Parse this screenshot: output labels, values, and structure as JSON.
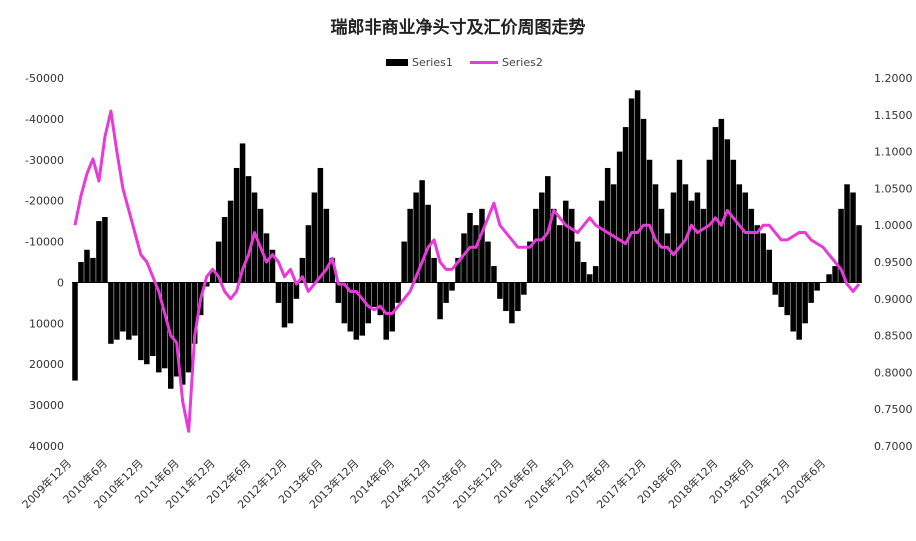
{
  "chart_data": {
    "type": "bar+line",
    "title": "瑞郎非商业净头寸及汇价周图走势",
    "legend": {
      "placement": "top-center",
      "entries": [
        {
          "name": "Series1",
          "style": "bar",
          "color": "#000000"
        },
        {
          "name": "Series2",
          "style": "line",
          "color": "#e83ad8"
        }
      ]
    },
    "left_axis": {
      "reversed": true,
      "ylim": [
        -50000,
        40000
      ],
      "ticks": [
        -50000,
        -40000,
        -30000,
        -20000,
        -10000,
        0,
        10000,
        20000,
        30000,
        40000
      ],
      "tick_labels": [
        "-50000",
        "-40000",
        "-30000",
        "-20000",
        "-10000",
        "0",
        "10000",
        "20000",
        "30000",
        "40000"
      ]
    },
    "right_axis": {
      "ylim": [
        0.7,
        1.2
      ],
      "ticks": [
        1.2,
        1.15,
        1.1,
        1.05,
        1.0,
        0.95,
        0.9,
        0.85,
        0.8,
        0.75,
        0.7
      ],
      "tick_labels": [
        "1.2000",
        "1.1500",
        "1.1000",
        "1.0500",
        "1.0000",
        "0.9500",
        "0.9000",
        "0.8500",
        "0.8000",
        "0.7500",
        "0.7000"
      ]
    },
    "x_axis": {
      "tick_labels": [
        "2009年12月",
        "2010年6月",
        "2010年12月",
        "2011年6月",
        "2011年12月",
        "2012年6月",
        "2012年12月",
        "2013年6月",
        "2013年12月",
        "2014年6月",
        "2014年12月",
        "2015年6月",
        "2015年12月",
        "2016年6月",
        "2016年12月",
        "2017年6月",
        "2017年12月",
        "2018年6月",
        "2018年12月",
        "2019年6月",
        "2019年12月",
        "2020年6月"
      ],
      "tick_months": [
        0,
        6,
        12,
        18,
        24,
        30,
        36,
        42,
        48,
        54,
        60,
        66,
        72,
        78,
        84,
        90,
        96,
        102,
        108,
        114,
        120,
        126
      ],
      "span_months": 132
    },
    "grid": false,
    "series": [
      {
        "name": "Series1",
        "type": "bar",
        "axis": "left",
        "x_months": [
          0,
          1,
          2,
          3,
          4,
          5,
          6,
          7,
          8,
          9,
          10,
          11,
          12,
          13,
          14,
          15,
          16,
          17,
          18,
          19,
          20,
          21,
          22,
          23,
          24,
          25,
          26,
          27,
          28,
          29,
          30,
          31,
          32,
          33,
          34,
          35,
          36,
          37,
          38,
          39,
          40,
          41,
          42,
          43,
          44,
          45,
          46,
          47,
          48,
          49,
          50,
          51,
          52,
          53,
          54,
          55,
          56,
          57,
          58,
          59,
          60,
          61,
          62,
          63,
          64,
          65,
          66,
          67,
          68,
          69,
          70,
          71,
          72,
          73,
          74,
          75,
          76,
          77,
          78,
          79,
          80,
          81,
          82,
          83,
          84,
          85,
          86,
          87,
          88,
          89,
          90,
          91,
          92,
          93,
          94,
          95,
          96,
          97,
          98,
          99,
          100,
          101,
          102,
          103,
          104,
          105,
          106,
          107,
          108,
          109,
          110,
          111,
          112,
          113,
          114,
          115,
          116,
          117,
          118,
          119,
          120,
          121,
          122,
          123,
          124,
          125,
          126,
          127,
          128,
          129,
          130,
          131
        ],
        "values": [
          24000,
          -5000,
          -8000,
          -6000,
          -15000,
          -16000,
          15000,
          14000,
          12000,
          14000,
          13000,
          19000,
          20000,
          18000,
          22000,
          21000,
          26000,
          23000,
          25000,
          22000,
          15000,
          8000,
          1000,
          -3000,
          -10000,
          -16000,
          -20000,
          -28000,
          -34000,
          -26000,
          -22000,
          -18000,
          -12000,
          -8000,
          5000,
          11000,
          10000,
          4000,
          -6000,
          -14000,
          -22000,
          -28000,
          -18000,
          -6000,
          5000,
          10000,
          12000,
          14000,
          13000,
          10000,
          6000,
          8000,
          14000,
          12000,
          5000,
          -10000,
          -18000,
          -22000,
          -25000,
          -19000,
          -6000,
          9000,
          5000,
          2000,
          -6000,
          -12000,
          -17000,
          -14000,
          -18000,
          -10000,
          -4000,
          4000,
          7000,
          10000,
          7000,
          3000,
          -10000,
          -18000,
          -22000,
          -26000,
          -18000,
          -14000,
          -20000,
          -18000,
          -10000,
          -5000,
          -2000,
          -4000,
          -20000,
          -28000,
          -24000,
          -32000,
          -38000,
          -45000,
          -47000,
          -40000,
          -30000,
          -24000,
          -18000,
          -12000,
          -22000,
          -30000,
          -24000,
          -20000,
          -22000,
          -18000,
          -30000,
          -38000,
          -40000,
          -35000,
          -30000,
          -24000,
          -22000,
          -18000,
          -14000,
          -12000,
          -8000,
          3000,
          6000,
          8000,
          12000,
          14000,
          10000,
          5000,
          2000,
          0,
          -2000,
          -4000,
          -18000,
          -24000,
          -22000,
          -14000
        ]
      },
      {
        "name": "Series2",
        "type": "line",
        "axis": "right",
        "x_months": [
          0,
          1,
          2,
          3,
          4,
          5,
          6,
          7,
          8,
          9,
          10,
          11,
          12,
          13,
          14,
          15,
          16,
          17,
          18,
          19,
          20,
          21,
          22,
          23,
          24,
          25,
          26,
          27,
          28,
          29,
          30,
          31,
          32,
          33,
          34,
          35,
          36,
          37,
          38,
          39,
          40,
          41,
          42,
          43,
          44,
          45,
          46,
          47,
          48,
          49,
          50,
          51,
          52,
          53,
          54,
          55,
          56,
          57,
          58,
          59,
          60,
          61,
          62,
          63,
          64,
          65,
          66,
          67,
          68,
          69,
          70,
          71,
          72,
          73,
          74,
          75,
          76,
          77,
          78,
          79,
          80,
          81,
          82,
          83,
          84,
          85,
          86,
          87,
          88,
          89,
          90,
          91,
          92,
          93,
          94,
          95,
          96,
          97,
          98,
          99,
          100,
          101,
          102,
          103,
          104,
          105,
          106,
          107,
          108,
          109,
          110,
          111,
          112,
          113,
          114,
          115,
          116,
          117,
          118,
          119,
          120,
          121,
          122,
          123,
          124,
          125,
          126,
          127,
          128,
          129,
          130,
          131
        ],
        "values": [
          1.0,
          1.04,
          1.07,
          1.09,
          1.06,
          1.12,
          1.155,
          1.1,
          1.05,
          1.02,
          0.99,
          0.96,
          0.95,
          0.93,
          0.91,
          0.88,
          0.85,
          0.84,
          0.76,
          0.72,
          0.85,
          0.9,
          0.93,
          0.94,
          0.93,
          0.91,
          0.9,
          0.91,
          0.94,
          0.96,
          0.99,
          0.97,
          0.95,
          0.96,
          0.95,
          0.93,
          0.94,
          0.92,
          0.93,
          0.91,
          0.92,
          0.93,
          0.94,
          0.955,
          0.92,
          0.92,
          0.91,
          0.91,
          0.9,
          0.89,
          0.885,
          0.89,
          0.88,
          0.88,
          0.89,
          0.9,
          0.91,
          0.93,
          0.95,
          0.97,
          0.98,
          0.95,
          0.94,
          0.94,
          0.95,
          0.96,
          0.97,
          0.97,
          0.99,
          1.01,
          1.03,
          1.0,
          0.99,
          0.98,
          0.97,
          0.97,
          0.97,
          0.98,
          0.98,
          0.99,
          1.02,
          1.01,
          1.0,
          0.995,
          0.99,
          1.0,
          1.01,
          1.0,
          0.995,
          0.99,
          0.985,
          0.98,
          0.975,
          0.99,
          0.99,
          1.0,
          1.0,
          0.98,
          0.97,
          0.97,
          0.96,
          0.97,
          0.98,
          1.0,
          0.99,
          0.995,
          1.0,
          1.01,
          1.0,
          1.02,
          1.01,
          1.0,
          0.99,
          0.99,
          0.99,
          1.0,
          1.0,
          0.99,
          0.98,
          0.98,
          0.985,
          0.99,
          0.99,
          0.98,
          0.975,
          0.97,
          0.96,
          0.95,
          0.94,
          0.92,
          0.91,
          0.92
        ]
      }
    ]
  }
}
